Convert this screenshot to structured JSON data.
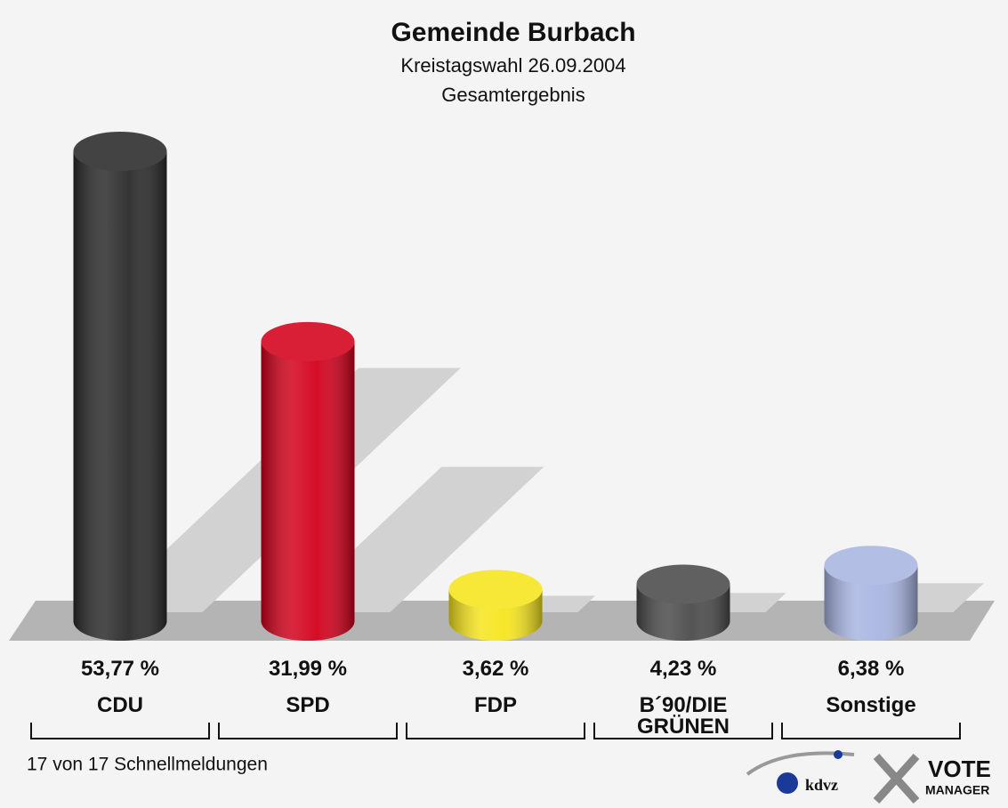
{
  "chart_data": {
    "type": "bar",
    "title": "Gemeinde Burbach",
    "subtitle": "Kreistagswahl 26.09.2004",
    "subtitle2": "Gesamtergebnis",
    "categories": [
      "CDU",
      "SPD",
      "FDP",
      "B´90/DIE GRÜNEN",
      "Sonstige"
    ],
    "values": [
      53.77,
      31.99,
      3.62,
      4.23,
      6.38
    ],
    "value_labels": [
      "53,77 %",
      "31,99 %",
      "3,62 %",
      "4,23 %",
      "6,38 %"
    ],
    "colors": [
      "#2a2a2a",
      "#d3001b",
      "#f6e51d",
      "#4b4b4b",
      "#a8b5e1"
    ],
    "footnote": "17 von 17 Schnellmeldungen",
    "logo": [
      "kdvz",
      "VOTE",
      "MANAGER"
    ]
  }
}
